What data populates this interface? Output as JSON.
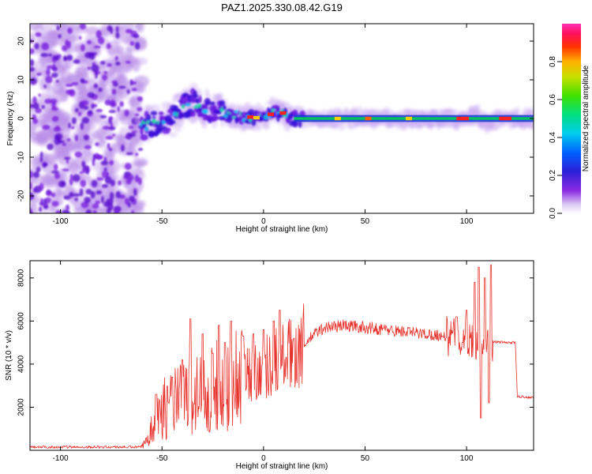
{
  "figure": {
    "title": "PAZ1.2025.330.08.42.G19"
  },
  "colors": {
    "snr_line": "#e8302a",
    "axis": "#000000",
    "background": "#ffffff"
  },
  "chart_data": [
    {
      "type": "heatmap",
      "title": "PAZ1.2025.330.08.42.G19",
      "xlabel": "Height of straight line (km)",
      "ylabel": "Frequency (Hz)",
      "xlim": [
        -115,
        133
      ],
      "ylim": [
        -24.5,
        24.5
      ],
      "xticks": [
        -100,
        -50,
        0,
        50,
        100
      ],
      "yticks": [
        -20,
        -10,
        0,
        10,
        20
      ],
      "colorbar": {
        "label": "Normalized spectral amplitude",
        "range": [
          0,
          1
        ],
        "ticks": [
          "0.0",
          "0.2",
          "0.4",
          "0.6",
          "0.8"
        ],
        "tick_values": [
          0,
          0.2,
          0.4,
          0.6,
          0.8
        ]
      },
      "features": {
        "noise_region_x": [
          -115,
          -60
        ],
        "ridge_track": [
          [
            -60,
            -2
          ],
          [
            -50,
            -1
          ],
          [
            -45,
            0
          ],
          [
            -40,
            3
          ],
          [
            -35,
            4
          ],
          [
            -30,
            3
          ],
          [
            -25,
            2
          ],
          [
            -20,
            1.5
          ],
          [
            -15,
            1
          ],
          [
            -10,
            0.5
          ],
          [
            -5,
            0.2
          ],
          [
            0,
            0.5
          ],
          [
            5,
            2
          ],
          [
            10,
            1
          ],
          [
            15,
            0
          ],
          [
            100,
            0
          ],
          [
            105,
            1
          ],
          [
            110,
            -1
          ],
          [
            115,
            0
          ],
          [
            133,
            0
          ]
        ]
      }
    },
    {
      "type": "line",
      "xlabel": "Height of straight line (km)",
      "ylabel": "SNR (10 * v/v)",
      "xlim": [
        -115,
        133
      ],
      "ylim": [
        0,
        8800
      ],
      "xticks": [
        -100,
        -50,
        0,
        50,
        100
      ],
      "yticks": [
        2000,
        4000,
        6000,
        8000
      ],
      "series": [
        {
          "name": "SNR",
          "envelope": [
            [
              -115,
              150
            ],
            [
              -60,
              150
            ],
            [
              -57,
              500
            ],
            [
              -55,
              1500
            ],
            [
              -45,
              2200
            ],
            [
              -35,
              2500
            ],
            [
              -25,
              2900
            ],
            [
              -15,
              3300
            ],
            [
              -8,
              3600
            ],
            [
              0,
              3900
            ],
            [
              10,
              4300
            ],
            [
              15,
              4500
            ],
            [
              20,
              4900
            ],
            [
              25,
              5400
            ],
            [
              30,
              5700
            ],
            [
              40,
              5800
            ],
            [
              50,
              5700
            ],
            [
              60,
              5600
            ],
            [
              70,
              5500
            ],
            [
              80,
              5400
            ],
            [
              90,
              5300
            ],
            [
              100,
              5200
            ],
            [
              110,
              5050
            ],
            [
              120,
              5000
            ],
            [
              124,
              5000
            ],
            [
              125,
              2500
            ],
            [
              133,
              2450
            ]
          ],
          "spikes": [
            [
              -53,
              2600
            ],
            [
              -45,
              3400
            ],
            [
              -40,
              4200
            ],
            [
              -36,
              6100
            ],
            [
              -30,
              5400
            ],
            [
              -25,
              4500
            ],
            [
              -22,
              5800
            ],
            [
              -19,
              5000
            ],
            [
              -16,
              6000
            ],
            [
              -10,
              5300
            ],
            [
              -5,
              5400
            ],
            [
              0,
              5600
            ],
            [
              5,
              6000
            ],
            [
              8,
              6500
            ],
            [
              15,
              5200
            ],
            [
              95,
              6200
            ],
            [
              98,
              5000
            ],
            [
              100,
              6500
            ],
            [
              104,
              7800
            ],
            [
              106,
              8500
            ],
            [
              107,
              1500
            ],
            [
              109,
              8000
            ],
            [
              111,
              2200
            ],
            [
              112,
              8600
            ]
          ]
        }
      ]
    }
  ]
}
